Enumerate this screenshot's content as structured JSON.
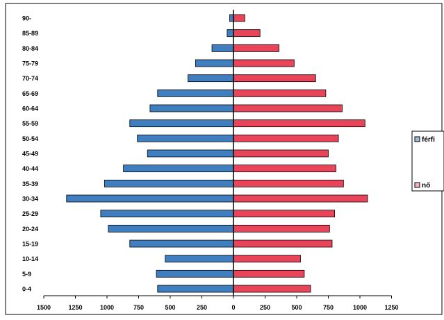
{
  "chart_data": {
    "type": "bar",
    "orientation": "horizontal",
    "layout": "population-pyramid",
    "categories": [
      "0-4",
      "5-9",
      "10-14",
      "15-19",
      "20-24",
      "25-29",
      "30-34",
      "35-39",
      "40-44",
      "45-49",
      "50-54",
      "55-59",
      "60-64",
      "65-69",
      "70-74",
      "75-79",
      "80-84",
      "85-89",
      "90-"
    ],
    "series": [
      {
        "name": "férfi",
        "color": "#3f7fbf",
        "side": "left",
        "values": [
          600,
          610,
          540,
          820,
          990,
          1050,
          1320,
          1020,
          870,
          680,
          760,
          820,
          660,
          600,
          360,
          300,
          170,
          50,
          30
        ]
      },
      {
        "name": "nő",
        "color": "#e8455a",
        "side": "right",
        "values": [
          610,
          560,
          530,
          780,
          760,
          800,
          1060,
          870,
          810,
          750,
          830,
          1040,
          860,
          730,
          650,
          480,
          360,
          210,
          90
        ]
      }
    ],
    "xticks": [
      "1500",
      "1250",
      "1000",
      "750",
      "500",
      "250",
      "0",
      "250",
      "500",
      "750",
      "1000",
      "1250"
    ],
    "xlim": [
      -1500,
      1250
    ],
    "grid": false,
    "legend_position": "right"
  }
}
